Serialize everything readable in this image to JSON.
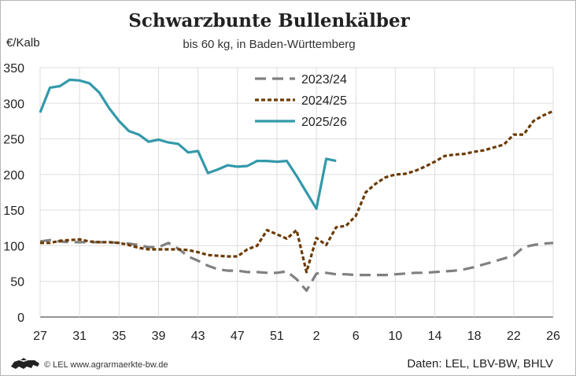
{
  "chart_data": {
    "type": "line",
    "title": "Schwarzbunte Bullenkälber",
    "subtitle": "bis 60 kg, in Baden-Württemberg",
    "ylabel": "€/Kalb",
    "xlabel": "",
    "ylim": [
      0,
      350
    ],
    "yticks": [
      0,
      50,
      100,
      150,
      200,
      250,
      300,
      350
    ],
    "xlim": [
      0,
      52
    ],
    "xticks": [
      {
        "pos": 0,
        "label": "27"
      },
      {
        "pos": 4,
        "label": "31"
      },
      {
        "pos": 8,
        "label": "35"
      },
      {
        "pos": 12,
        "label": "39"
      },
      {
        "pos": 16,
        "label": "43"
      },
      {
        "pos": 20,
        "label": "47"
      },
      {
        "pos": 24,
        "label": "51"
      },
      {
        "pos": 28,
        "label": "2"
      },
      {
        "pos": 32,
        "label": "6"
      },
      {
        "pos": 36,
        "label": "10"
      },
      {
        "pos": 40,
        "label": "14"
      },
      {
        "pos": 44,
        "label": "18"
      },
      {
        "pos": 48,
        "label": "22"
      },
      {
        "pos": 52,
        "label": "26"
      }
    ],
    "grid": true,
    "legend_position": "top-center",
    "series": [
      {
        "name": "2023/24",
        "color": "#808080",
        "style": "dashed",
        "x": [
          0,
          1,
          2,
          3,
          4,
          5,
          6,
          7,
          8,
          9,
          10,
          11,
          12,
          13,
          14,
          15,
          16,
          17,
          18,
          19,
          20,
          21,
          22,
          23,
          24,
          25,
          26,
          27,
          28,
          29,
          30,
          31,
          32,
          33,
          34,
          35,
          36,
          37,
          38,
          39,
          40,
          41,
          42,
          43,
          44,
          45,
          46,
          47,
          48,
          49,
          50,
          51,
          52
        ],
        "values": [
          106,
          108,
          106,
          105,
          105,
          105,
          105,
          105,
          104,
          103,
          101,
          98,
          98,
          104,
          96,
          85,
          79,
          72,
          67,
          65,
          65,
          63,
          63,
          62,
          62,
          64,
          53,
          37,
          61,
          62,
          60,
          60,
          59,
          59,
          59,
          59,
          60,
          61,
          62,
          62,
          63,
          64,
          65,
          67,
          70,
          74,
          78,
          82,
          86,
          98,
          101,
          103,
          104
        ]
      },
      {
        "name": "2024/25",
        "color": "#6b3a00",
        "style": "dotted",
        "x": [
          0,
          1,
          2,
          3,
          4,
          5,
          6,
          7,
          8,
          9,
          10,
          11,
          12,
          13,
          14,
          15,
          16,
          17,
          18,
          19,
          20,
          21,
          22,
          23,
          24,
          25,
          26,
          27,
          28,
          29,
          30,
          31,
          32,
          33,
          34,
          35,
          36,
          37,
          38,
          39,
          40,
          41,
          42,
          43,
          44,
          45,
          46,
          47,
          48,
          49,
          50,
          51,
          52
        ],
        "values": [
          104,
          104,
          107,
          108,
          109,
          106,
          105,
          105,
          104,
          101,
          97,
          95,
          95,
          95,
          95,
          94,
          91,
          87,
          86,
          85,
          85,
          95,
          100,
          122,
          116,
          110,
          122,
          63,
          111,
          101,
          126,
          128,
          142,
          175,
          187,
          196,
          200,
          201,
          205,
          211,
          218,
          226,
          228,
          229,
          232,
          234,
          238,
          242,
          256,
          256,
          275,
          283,
          289
        ]
      },
      {
        "name": "2025/26",
        "color": "#3399aa",
        "style": "solid",
        "x": [
          0,
          1,
          2,
          3,
          4,
          5,
          6,
          7,
          8,
          9,
          10,
          11,
          12,
          13,
          14,
          15,
          16,
          17,
          18,
          19,
          20,
          21,
          22,
          23,
          24,
          25,
          26,
          27,
          28,
          29,
          30
        ],
        "values": [
          287,
          322,
          324,
          333,
          332,
          328,
          315,
          293,
          275,
          261,
          256,
          246,
          249,
          245,
          243,
          231,
          233,
          202,
          207,
          213,
          211,
          212,
          219,
          219,
          218,
          219,
          198,
          175,
          152,
          222,
          219
        ]
      }
    ]
  },
  "footer": {
    "source_left": "© LEL www.agrarmaerkte-bw.de",
    "source_right": "Daten: LEL, LBV-BW, BHLV"
  }
}
